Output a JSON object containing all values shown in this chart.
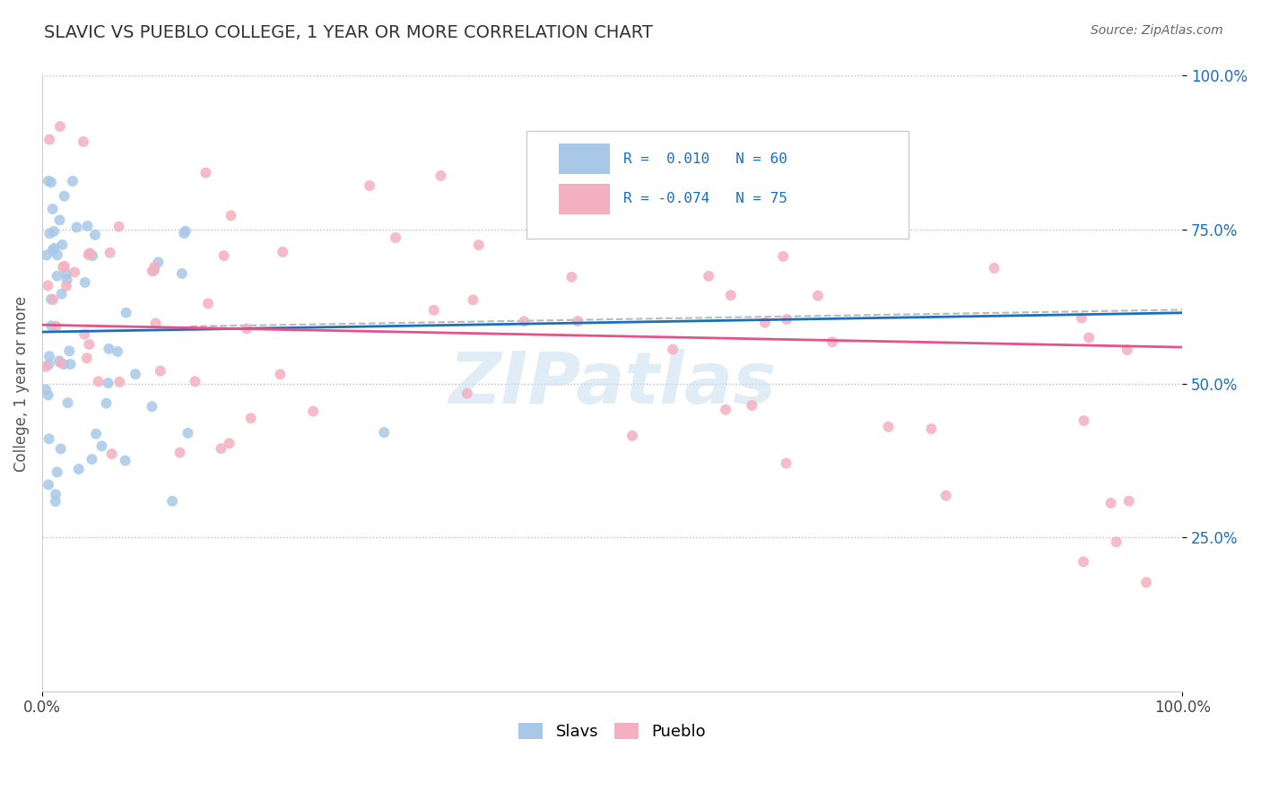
{
  "title": "SLAVIC VS PUEBLO COLLEGE, 1 YEAR OR MORE CORRELATION CHART",
  "source_text": "Source: ZipAtlas.com",
  "ylabel": "College, 1 year or more",
  "xlim": [
    0,
    1
  ],
  "ylim": [
    0,
    1
  ],
  "slavs_R": 0.01,
  "slavs_N": 60,
  "pueblo_R": -0.074,
  "pueblo_N": 75,
  "slavs_color": "#a8c8e8",
  "pueblo_color": "#f4b0c0",
  "slavs_line_color": "#1a6fbd",
  "pueblo_line_color": "#e8508a",
  "dashed_line_color": "#aaaaaa",
  "watermark": "ZIPatlas",
  "watermark_color": "#cce0f0",
  "title_color": "#333333",
  "source_color": "#666666",
  "ytick_color": "#1a6fbd",
  "ylabel_color": "#555555"
}
